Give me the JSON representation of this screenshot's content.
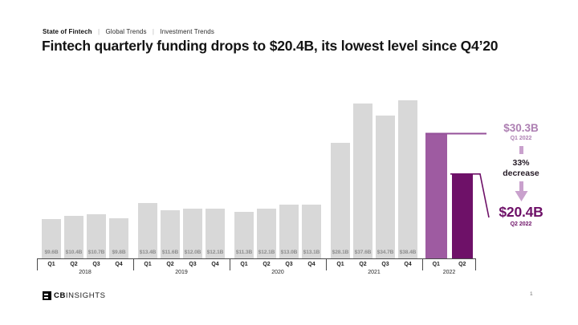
{
  "header": {
    "breadcrumb": [
      "State of Fintech",
      "Global Trends",
      "Investment Trends"
    ],
    "separator": "|",
    "title": "Fintech quarterly funding drops to $20.4B, its lowest level since Q4’20"
  },
  "chart_data": {
    "type": "bar",
    "title": "Fintech quarterly funding by quarter ($B)",
    "ylim": [
      0,
      38.4
    ],
    "grid": false,
    "bar_color_default": "#d8d8d8",
    "groups": [
      {
        "year": "2018",
        "quarters": [
          "Q1",
          "Q2",
          "Q3",
          "Q4"
        ],
        "values": [
          9.6,
          10.4,
          10.7,
          9.8
        ],
        "labels": [
          "$9.6B",
          "$10.4B",
          "$10.7B",
          "$9.8B"
        ],
        "colors": [
          "#d8d8d8",
          "#d8d8d8",
          "#d8d8d8",
          "#d8d8d8"
        ]
      },
      {
        "year": "2019",
        "quarters": [
          "Q1",
          "Q2",
          "Q3",
          "Q4"
        ],
        "values": [
          13.4,
          11.6,
          12.0,
          12.1
        ],
        "labels": [
          "$13.4B",
          "$11.6B",
          "$12.0B",
          "$12.1B"
        ],
        "colors": [
          "#d8d8d8",
          "#d8d8d8",
          "#d8d8d8",
          "#d8d8d8"
        ]
      },
      {
        "year": "2020",
        "quarters": [
          "Q1",
          "Q2",
          "Q3",
          "Q4"
        ],
        "values": [
          11.3,
          12.1,
          13.0,
          13.1
        ],
        "labels": [
          "$11.3B",
          "$12.1B",
          "$13.0B",
          "$13.1B"
        ],
        "colors": [
          "#d8d8d8",
          "#d8d8d8",
          "#d8d8d8",
          "#d8d8d8"
        ]
      },
      {
        "year": "2021",
        "quarters": [
          "Q1",
          "Q2",
          "Q3",
          "Q4"
        ],
        "values": [
          28.1,
          37.6,
          34.7,
          38.4
        ],
        "labels": [
          "$28.1B",
          "$37.6B",
          "$34.7B",
          "$38.4B"
        ],
        "colors": [
          "#d8d8d8",
          "#d8d8d8",
          "#d8d8d8",
          "#d8d8d8"
        ]
      },
      {
        "year": "2022",
        "quarters": [
          "Q1",
          "Q2"
        ],
        "values": [
          30.3,
          20.4
        ],
        "labels": [
          "",
          ""
        ],
        "colors": [
          "#9e5ba1",
          "#6e1168"
        ]
      }
    ]
  },
  "annotations": {
    "peak_value": "$30.3B",
    "peak_period": "Q1 2022",
    "change_line1": "33%",
    "change_line2": "decrease",
    "current_value": "$20.4B",
    "current_period": "Q2 2022"
  },
  "colors": {
    "accent_light": "#9e5ba1",
    "accent_dark": "#6e1168",
    "annotation_light_text": "#ad7fb2",
    "arrow": "#c9a1cd",
    "connector_q1": "#95519a",
    "connector_q2": "#6e1168"
  },
  "footer": {
    "logo_cb": "CB",
    "logo_insights": "INSIGHTS",
    "page_number": "1"
  }
}
